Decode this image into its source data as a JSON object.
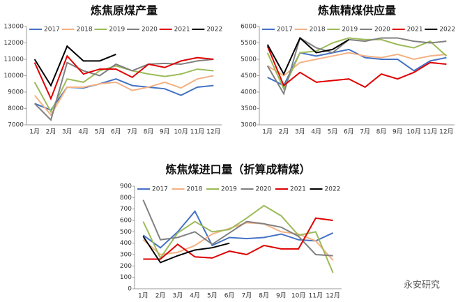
{
  "chart_data": [
    {
      "type": "line",
      "title": "炼焦原煤产量",
      "categories": [
        "1月",
        "2月",
        "3月",
        "4月",
        "5月",
        "6月",
        "7月",
        "8月",
        "9月",
        "10月",
        "11月",
        "12月"
      ],
      "ylim": [
        7000,
        13000
      ],
      "yticks": [
        7000,
        8000,
        9000,
        10000,
        11000,
        12000,
        13000
      ],
      "series": [
        {
          "name": "2017",
          "color": "#4472c4",
          "values": [
            8300,
            7900,
            9300,
            9250,
            9500,
            9800,
            9400,
            9300,
            9200,
            8800,
            9300,
            9400
          ]
        },
        {
          "name": "2018",
          "color": "#f4b183",
          "values": [
            8800,
            7600,
            9300,
            9300,
            9500,
            9600,
            9100,
            9300,
            9600,
            9250,
            9800,
            10000
          ]
        },
        {
          "name": "2019",
          "color": "#9bbb59",
          "values": [
            9600,
            7800,
            9800,
            9600,
            10300,
            10600,
            10300,
            10100,
            9950,
            10100,
            10400,
            10300
          ]
        },
        {
          "name": "2020",
          "color": "#808080",
          "values": [
            8300,
            7300,
            10800,
            10300,
            10000,
            10700,
            10300,
            10700,
            10750,
            10700,
            10900,
            11000
          ]
        },
        {
          "name": "2021",
          "color": "#e00000",
          "values": [
            10800,
            8600,
            11200,
            10100,
            10400,
            10400,
            9900,
            10700,
            10500,
            10900,
            11100,
            11000
          ]
        },
        {
          "name": "2022",
          "color": "#000000",
          "values": [
            11000,
            9400,
            11800,
            10900,
            10900,
            11300,
            null,
            null,
            null,
            null,
            null,
            null
          ]
        }
      ]
    },
    {
      "type": "line",
      "title": "炼焦精煤供应量",
      "categories": [
        "1月",
        "2月",
        "3月",
        "4月",
        "5月",
        "6月",
        "7月",
        "8月",
        "9月",
        "10月",
        "11月",
        "12月"
      ],
      "ylim": [
        3000,
        6000
      ],
      "yticks": [
        3000,
        3500,
        4000,
        4500,
        5000,
        5500,
        6000
      ],
      "series": [
        {
          "name": "2017",
          "color": "#4472c4",
          "values": [
            4450,
            4200,
            5200,
            5100,
            5200,
            5300,
            5050,
            5000,
            5000,
            4650,
            4950,
            5050
          ]
        },
        {
          "name": "2018",
          "color": "#f4b183",
          "values": [
            4800,
            4500,
            4900,
            5000,
            5100,
            5200,
            5100,
            5050,
            5150,
            5000,
            5100,
            5150
          ]
        },
        {
          "name": "2019",
          "color": "#9bbb59",
          "values": [
            5200,
            4100,
            5200,
            5250,
            5500,
            5650,
            5600,
            5600,
            5450,
            5350,
            5550,
            5100
          ]
        },
        {
          "name": "2020",
          "color": "#808080",
          "values": [
            4800,
            3950,
            5650,
            5350,
            5200,
            5600,
            5550,
            5650,
            5650,
            5550,
            5500,
            5550
          ]
        },
        {
          "name": "2021",
          "color": "#e00000",
          "values": [
            5400,
            4200,
            4600,
            4300,
            4350,
            4400,
            4150,
            4550,
            4400,
            4600,
            4900,
            4850
          ]
        },
        {
          "name": "2022",
          "color": "#000000",
          "values": [
            5450,
            4550,
            5650,
            5200,
            5300,
            5600,
            null,
            null,
            null,
            null,
            null,
            null
          ]
        }
      ]
    },
    {
      "type": "line",
      "title": "炼焦煤进口量（折算成精煤）",
      "categories": [
        "1月",
        "2月",
        "3月",
        "4月",
        "5月",
        "6月",
        "7月",
        "8月",
        "9月",
        "10月",
        "11月",
        "12月"
      ],
      "ylim": [
        0,
        900
      ],
      "yticks": [
        0,
        100,
        200,
        300,
        400,
        500,
        600,
        700,
        800,
        900
      ],
      "series": [
        {
          "name": "2017",
          "color": "#4472c4",
          "values": [
            470,
            360,
            500,
            680,
            380,
            450,
            440,
            450,
            480,
            430,
            420,
            490
          ]
        },
        {
          "name": "2018",
          "color": "#f4b183",
          "values": [
            430,
            300,
            320,
            380,
            480,
            530,
            580,
            570,
            500,
            480,
            420,
            250
          ]
        },
        {
          "name": "2019",
          "color": "#9bbb59",
          "values": [
            590,
            270,
            490,
            590,
            500,
            520,
            620,
            730,
            640,
            470,
            500,
            140
          ]
        },
        {
          "name": "2020",
          "color": "#808080",
          "values": [
            780,
            430,
            450,
            500,
            390,
            490,
            590,
            570,
            540,
            460,
            300,
            290
          ]
        },
        {
          "name": "2021",
          "color": "#e00000",
          "values": [
            260,
            260,
            390,
            280,
            270,
            330,
            300,
            380,
            350,
            350,
            620,
            600
          ]
        },
        {
          "name": "2022",
          "color": "#000000",
          "values": [
            460,
            230,
            290,
            340,
            360,
            400,
            null,
            null,
            null,
            null,
            null,
            null
          ]
        }
      ]
    }
  ],
  "watermark": "永安研究"
}
